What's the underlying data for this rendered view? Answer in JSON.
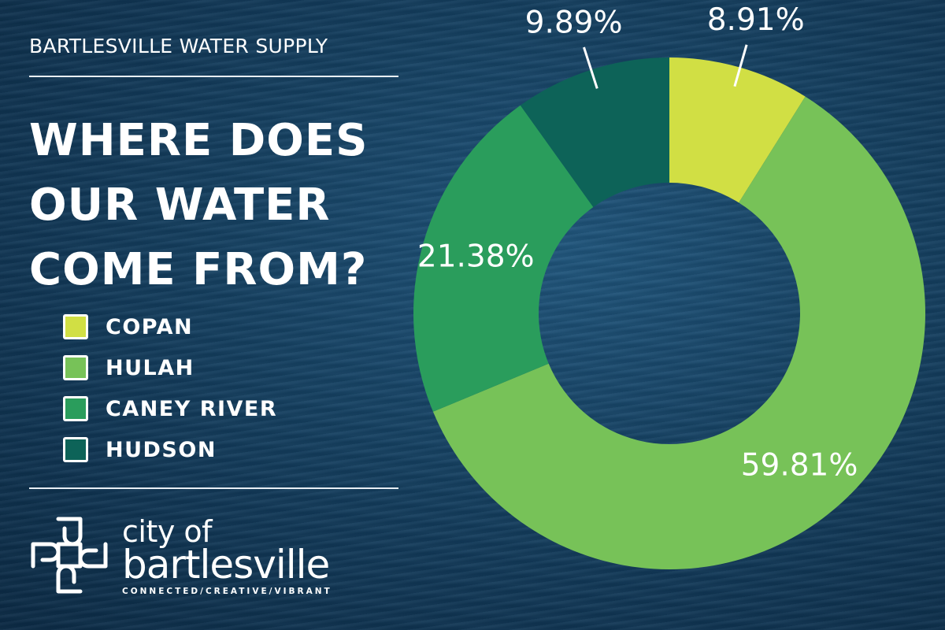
{
  "header": {
    "subtitle": "BARTLESVILLE WATER SUPPLY",
    "headline": [
      "WHERE DOES",
      "OUR WATER",
      "COME FROM?"
    ]
  },
  "legend": [
    {
      "label": "COPAN",
      "color": "#d1df44"
    },
    {
      "label": "HULAH",
      "color": "#77c258"
    },
    {
      "label": "CANEY RIVER",
      "color": "#2a9d5c"
    },
    {
      "label": "HUDSON",
      "color": "#0d6358"
    }
  ],
  "chart_data": {
    "type": "pie",
    "title": "",
    "donut": true,
    "series": [
      {
        "name": "COPAN",
        "value": 8.91,
        "label": "8.91%",
        "color": "#d1df44"
      },
      {
        "name": "HULAH",
        "value": 59.81,
        "label": "59.81%",
        "color": "#77c258"
      },
      {
        "name": "CANEY RIVER",
        "value": 21.38,
        "label": "21.38%",
        "color": "#2a9d5c"
      },
      {
        "name": "HUDSON",
        "value": 9.89,
        "label": "9.89%",
        "color": "#0d6358"
      }
    ]
  },
  "logo": {
    "line1": "city of",
    "line2": "bartlesville",
    "tagline": "CONNECTED/CREATIVE/VIBRANT"
  }
}
